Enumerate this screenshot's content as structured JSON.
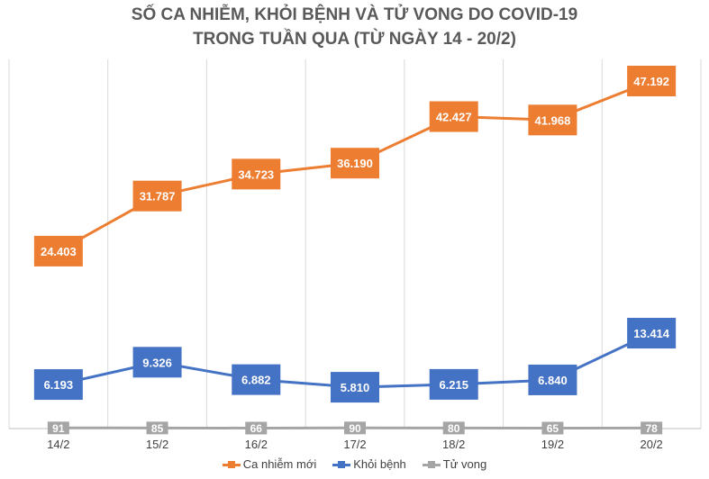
{
  "title_line1": "SỐ CA NHIỄM, KHỎI BỆNH VÀ TỬ VONG DO COVID-19",
  "title_line2": "TRONG TUẦN QUA (TỪ NGÀY 14 - 20/2)",
  "chart_data": {
    "type": "line",
    "title": "SỐ CA NHIỄM, KHỎI BỆNH VÀ TỬ VONG DO COVID-19 TRONG TUẦN QUA (TỪ NGÀY 14 - 20/2)",
    "categories": [
      "14/2",
      "15/2",
      "16/2",
      "17/2",
      "18/2",
      "19/2",
      "20/2"
    ],
    "series": [
      {
        "name": "Ca nhiễm mới",
        "color": "#ED7D31",
        "values": [
          24403,
          31787,
          34723,
          36190,
          42427,
          41968,
          47192
        ],
        "labels": [
          "24.403",
          "31.787",
          "34.723",
          "36.190",
          "42.427",
          "41.968",
          "47.192"
        ]
      },
      {
        "name": "Khỏi bệnh",
        "color": "#4472C4",
        "values": [
          6193,
          9326,
          6882,
          5810,
          6215,
          6840,
          13414
        ],
        "labels": [
          "6.193",
          "9.326",
          "6.882",
          "5.810",
          "6.215",
          "6.840",
          "13.414"
        ]
      },
      {
        "name": "Tử vong",
        "color": "#A5A5A5",
        "values": [
          91,
          85,
          66,
          90,
          80,
          65,
          78
        ],
        "labels": [
          "91",
          "85",
          "66",
          "90",
          "80",
          "65",
          "78"
        ]
      }
    ],
    "ylim": [
      0,
      50000
    ],
    "grid": "vertical",
    "legend": "bottom"
  }
}
